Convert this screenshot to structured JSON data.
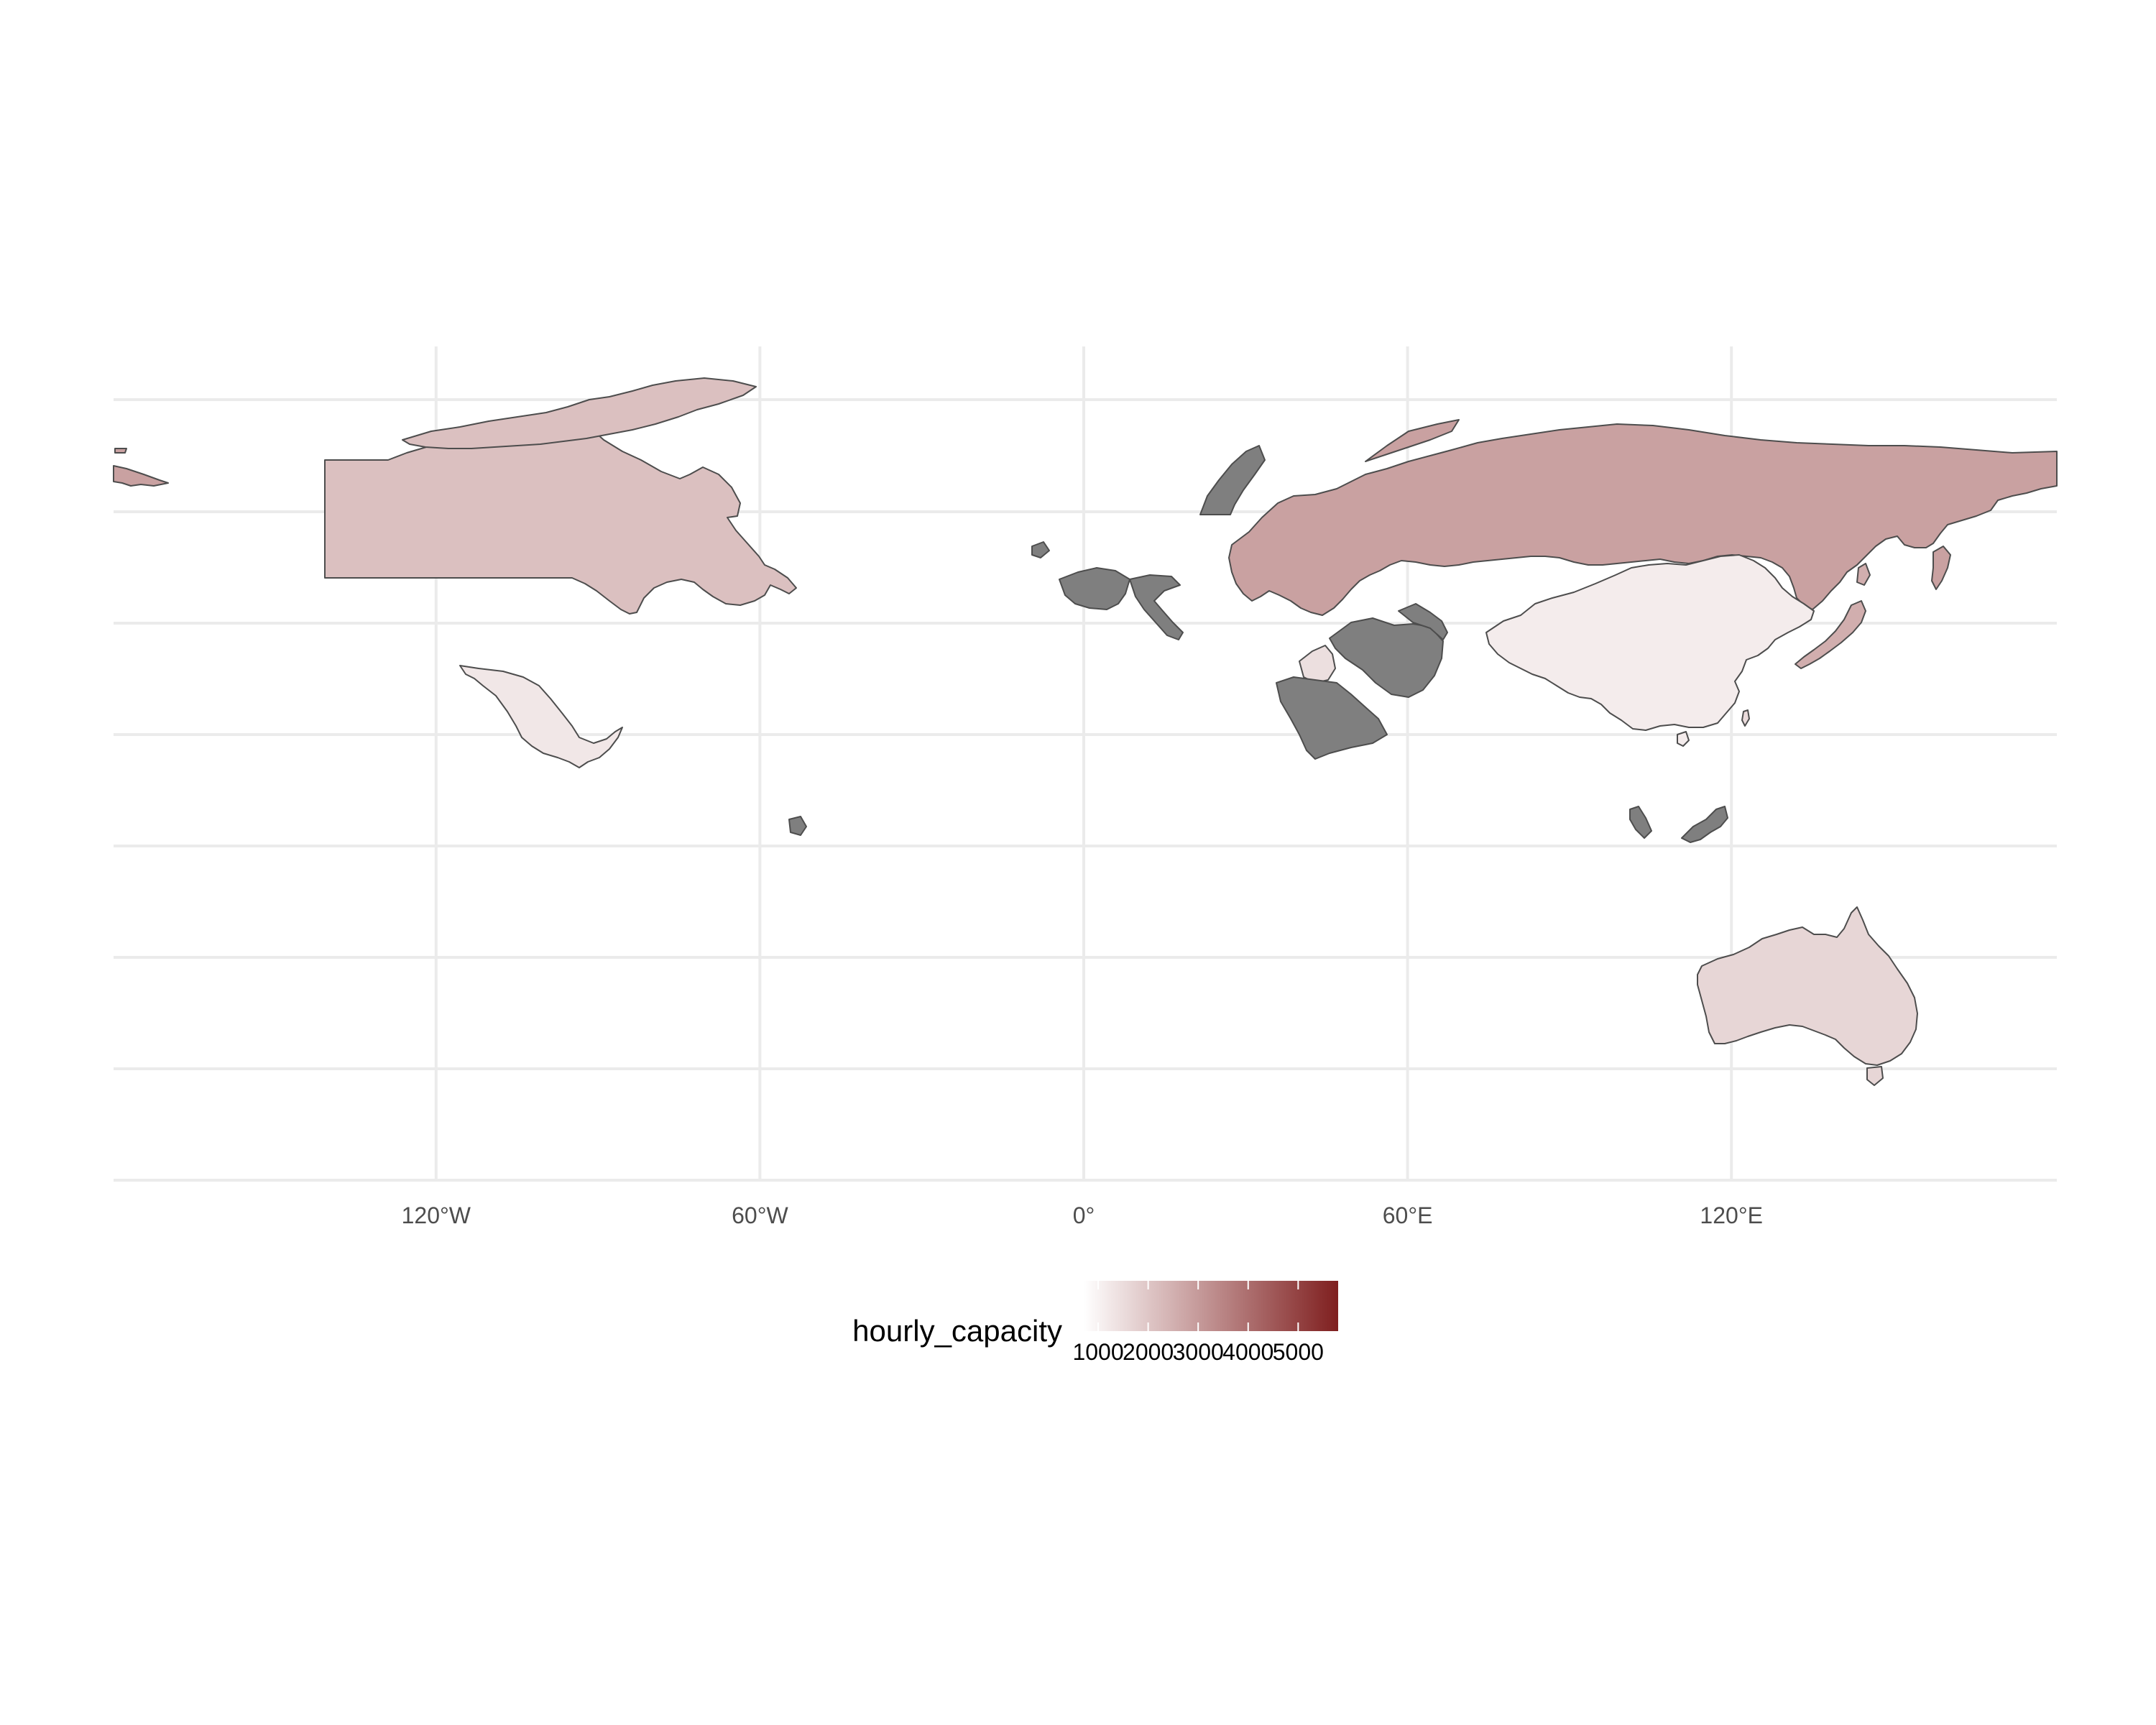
{
  "map": {
    "projection": "equirectangular",
    "x_axis_ticks": [
      {
        "lon": -120,
        "label": "120°W"
      },
      {
        "lon": -60,
        "label": "60°W"
      },
      {
        "lon": 0,
        "label": "0°"
      },
      {
        "lon": 60,
        "label": "60°E"
      },
      {
        "lon": 120,
        "label": "120°E"
      }
    ],
    "grid": true,
    "no_data_color": "#7f7f7f",
    "border_color": "#4d4d4d",
    "countries": [
      {
        "name": "Canada",
        "hourly_capacity": 2150
      },
      {
        "name": "United States (Alaska)",
        "hourly_capacity": 2850
      },
      {
        "name": "Mexico",
        "hourly_capacity": 1250
      },
      {
        "name": "Russia",
        "hourly_capacity": 2850
      },
      {
        "name": "China",
        "hourly_capacity": 1150
      },
      {
        "name": "Japan",
        "hourly_capacity": 2550
      },
      {
        "name": "Australia",
        "hourly_capacity": 1650
      },
      {
        "name": "Jordan/Israel",
        "hourly_capacity": 1450
      },
      {
        "name": "Taiwan",
        "hourly_capacity": 1500
      },
      {
        "name": "France",
        "hourly_capacity": null
      },
      {
        "name": "Italy",
        "hourly_capacity": null
      },
      {
        "name": "Iran",
        "hourly_capacity": null
      },
      {
        "name": "Saudi Arabia",
        "hourly_capacity": null
      },
      {
        "name": "Norway",
        "hourly_capacity": null
      },
      {
        "name": "Malaysia",
        "hourly_capacity": null
      }
    ]
  },
  "legend": {
    "title": "hourly_capacity",
    "position": "bottom",
    "color_low": "#ffffff",
    "color_high": "#7f1f1f",
    "min": 712,
    "max": 5800,
    "ticks": [
      {
        "value": 1000,
        "label": "1000"
      },
      {
        "value": 2000,
        "label": "2000"
      },
      {
        "value": 3000,
        "label": "3000"
      },
      {
        "value": 4000,
        "label": "4000"
      },
      {
        "value": 5000,
        "label": "5000"
      }
    ]
  }
}
